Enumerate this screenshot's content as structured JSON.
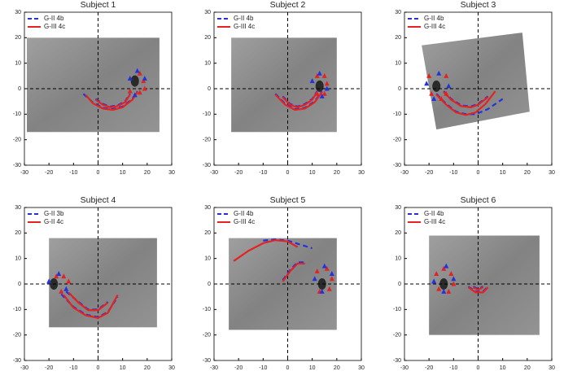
{
  "chart_data": [
    {
      "type": "line",
      "title": "Subject 1",
      "xlim": [
        -30,
        30
      ],
      "ylim": [
        -30,
        30
      ],
      "xticks": [
        -30,
        -20,
        -10,
        0,
        10,
        20,
        30
      ],
      "yticks": [
        -30,
        -20,
        -10,
        0,
        10,
        20,
        30
      ],
      "legend": "upper left",
      "series": [
        {
          "name": "G-II 4b",
          "color": "#2233dd",
          "style": "dashed",
          "x": [
            -6,
            -2,
            2,
            6,
            10,
            14,
            16,
            null,
            -1,
            2,
            5,
            8,
            11,
            13
          ],
          "values": [
            -2,
            -5.5,
            -7.5,
            -8,
            -7,
            -4,
            -1,
            null,
            -4,
            -6,
            -7,
            -6.5,
            -5,
            -2
          ]
        },
        {
          "name": "G-III 4c",
          "color": "#e32222",
          "style": "solid",
          "x": [
            -5,
            -2,
            2,
            6,
            10,
            14,
            16,
            null,
            -1,
            2,
            5,
            8,
            11,
            13
          ],
          "values": [
            -2.5,
            -5.8,
            -7.8,
            -8.3,
            -7.3,
            -4.3,
            -1.3,
            null,
            -4.3,
            -6.3,
            -7.3,
            -6.8,
            -5.3,
            -2.3
          ]
        }
      ],
      "markers": [
        {
          "color": "#e32222",
          "x": [
            17,
            18.5,
            19,
            17,
            13
          ],
          "y": [
            6,
            3,
            0,
            -1.5,
            -1
          ]
        },
        {
          "color": "#2233dd",
          "x": [
            13,
            16,
            19,
            15
          ],
          "y": [
            4,
            7,
            4,
            -2.5
          ]
        }
      ]
    },
    {
      "type": "line",
      "title": "Subject 2",
      "xlim": [
        -30,
        30
      ],
      "ylim": [
        -30,
        30
      ],
      "xticks": [
        -30,
        -20,
        -10,
        0,
        10,
        20,
        30
      ],
      "yticks": [
        -30,
        -20,
        -10,
        0,
        10,
        20,
        30
      ],
      "legend": "upper left",
      "series": [
        {
          "name": "G-II 4b",
          "color": "#2233dd",
          "style": "dashed",
          "x": [
            -5,
            -1,
            3,
            7,
            11,
            14,
            null,
            -2,
            1,
            4,
            7,
            10,
            12
          ],
          "values": [
            -2,
            -6,
            -8,
            -7.5,
            -5,
            -1,
            null,
            -3,
            -6,
            -7,
            -6,
            -4,
            -1
          ]
        },
        {
          "name": "G-III 4c",
          "color": "#e32222",
          "style": "solid",
          "x": [
            -5,
            -1,
            3,
            7,
            11,
            14,
            null,
            -2,
            1,
            4,
            7,
            10,
            12
          ],
          "values": [
            -2.3,
            -6.3,
            -8.3,
            -7.8,
            -5.3,
            -1.3,
            null,
            -3.3,
            -6.3,
            -7.3,
            -6.3,
            -4.3,
            -1.3
          ]
        }
      ],
      "markers": [
        {
          "color": "#e32222",
          "x": [
            12,
            15,
            16,
            15,
            12
          ],
          "y": [
            5,
            5,
            2,
            -2,
            -2
          ]
        },
        {
          "color": "#2233dd",
          "x": [
            10,
            13,
            16,
            14
          ],
          "y": [
            3,
            6,
            0,
            -3
          ]
        }
      ]
    },
    {
      "type": "line",
      "title": "Subject 3",
      "xlim": [
        -30,
        30
      ],
      "ylim": [
        -30,
        30
      ],
      "xticks": [
        -30,
        -20,
        -10,
        0,
        10,
        20,
        30
      ],
      "yticks": [
        -30,
        -20,
        -10,
        0,
        10,
        20,
        30
      ],
      "legend": "upper left",
      "series": [
        {
          "name": "G-II 4b",
          "color": "#2233dd",
          "style": "dashed",
          "x": [
            -17,
            -13,
            -9,
            -5,
            -1,
            4,
            10,
            null,
            -14,
            -11,
            -7,
            -3,
            0,
            4
          ],
          "values": [
            -2,
            -6,
            -9,
            -10,
            -10,
            -8,
            -4,
            null,
            -1,
            -4,
            -6.5,
            -7,
            -6,
            -3
          ]
        },
        {
          "name": "G-III 4c",
          "color": "#e32222",
          "style": "solid",
          "x": [
            -17,
            -13,
            -9,
            -5,
            -1,
            3,
            7,
            null,
            -14,
            -11,
            -7,
            -3,
            0,
            4
          ],
          "values": [
            -2.3,
            -6.3,
            -9.3,
            -10.3,
            -9.3,
            -6,
            -1,
            null,
            -1.3,
            -4.3,
            -6.8,
            -7.3,
            -6.3,
            -3.3
          ]
        }
      ],
      "markers": [
        {
          "color": "#e32222",
          "x": [
            -20,
            -19,
            -13,
            -13,
            -15
          ],
          "y": [
            5,
            -2,
            5,
            -2,
            -4
          ]
        },
        {
          "color": "#2233dd",
          "x": [
            -21,
            -16,
            -12,
            -18
          ],
          "y": [
            2,
            6,
            1,
            -4
          ]
        }
      ]
    },
    {
      "type": "line",
      "title": "Subject 4",
      "xlim": [
        -30,
        30
      ],
      "ylim": [
        -30,
        30
      ],
      "xticks": [
        -30,
        -20,
        -10,
        0,
        10,
        20,
        30
      ],
      "yticks": [
        -30,
        -20,
        -10,
        0,
        10,
        20,
        30
      ],
      "legend": "upper left",
      "series": [
        {
          "name": "G-II 3b",
          "color": "#2233dd",
          "style": "dashed",
          "x": [
            -15,
            -10,
            -5,
            0,
            4,
            8,
            null,
            -13,
            -8,
            -4,
            0,
            4
          ],
          "values": [
            -4,
            -9,
            -12,
            -13,
            -11,
            -5,
            null,
            -3,
            -7,
            -10,
            -10,
            -7
          ]
        },
        {
          "name": "G-II 4c",
          "color": "#e32222",
          "style": "solid",
          "x": [
            -14,
            -10,
            -5,
            0,
            4,
            8,
            null,
            -12,
            -8,
            -4,
            0,
            4
          ],
          "values": [
            -4.3,
            -9.3,
            -12.3,
            -13.3,
            -11.3,
            -4.3,
            null,
            -3.3,
            -7.3,
            -10.3,
            -10.3,
            -7.3
          ]
        }
      ],
      "markers": [
        {
          "color": "#e32222",
          "x": [
            -17,
            -14,
            -12,
            -15
          ],
          "y": [
            3,
            3,
            1,
            -3
          ]
        },
        {
          "color": "#2233dd",
          "x": [
            -20,
            -16,
            -13
          ],
          "y": [
            1,
            4,
            -2
          ]
        }
      ]
    },
    {
      "type": "line",
      "title": "Subject 5",
      "xlim": [
        -30,
        30
      ],
      "ylim": [
        -30,
        30
      ],
      "xticks": [
        -30,
        -20,
        -10,
        0,
        10,
        20,
        30
      ],
      "yticks": [
        -30,
        -20,
        -10,
        0,
        10,
        20,
        30
      ],
      "legend": "upper left",
      "series": [
        {
          "name": "G-II 4b",
          "color": "#2233dd",
          "style": "dashed",
          "x": [
            -10,
            -5,
            0,
            5,
            10,
            null,
            -2,
            1,
            4,
            7
          ],
          "values": [
            17,
            17.5,
            17,
            15.5,
            14,
            null,
            1.5,
            5.5,
            8.5,
            8.5
          ]
        },
        {
          "name": "G-III 4c",
          "color": "#e32222",
          "style": "solid",
          "x": [
            -22,
            -16,
            -10,
            -5,
            0,
            4,
            null,
            -2,
            1,
            4,
            7
          ],
          "values": [
            9,
            13,
            16,
            17.2,
            16.7,
            14.5,
            null,
            1,
            5,
            8,
            8
          ]
        }
      ],
      "markers": [
        {
          "color": "#e32222",
          "x": [
            12,
            16,
            18,
            17,
            13
          ],
          "y": [
            5,
            6,
            2,
            -2,
            -3
          ]
        },
        {
          "color": "#2233dd",
          "x": [
            11,
            15,
            18,
            14
          ],
          "y": [
            2,
            7,
            4,
            -3
          ]
        }
      ]
    },
    {
      "type": "line",
      "title": "Subject 6",
      "xlim": [
        -30,
        30
      ],
      "ylim": [
        -30,
        30
      ],
      "xticks": [
        -30,
        -20,
        -10,
        0,
        10,
        20,
        30
      ],
      "yticks": [
        -30,
        -20,
        -10,
        0,
        10,
        20,
        30
      ],
      "legend": "upper left",
      "series": [
        {
          "name": "G-II 4b",
          "color": "#2233dd",
          "style": "dashed",
          "x": [
            -4,
            -1,
            2,
            4,
            null,
            -2,
            0,
            2
          ],
          "values": [
            -1,
            -3,
            -3,
            -1,
            null,
            -1,
            -2,
            -1
          ]
        },
        {
          "name": "G-III 4c",
          "color": "#e32222",
          "style": "solid",
          "x": [
            -4,
            -1,
            2,
            4,
            null,
            -2,
            0,
            2
          ],
          "values": [
            -1.3,
            -3.3,
            -3.3,
            -1.3,
            null,
            -1.3,
            -2.3,
            -1.3
          ]
        }
      ],
      "markers": [
        {
          "color": "#e32222",
          "x": [
            -17,
            -14,
            -11,
            -10,
            -12,
            -16
          ],
          "y": [
            4,
            6,
            4,
            0,
            -3,
            -2
          ]
        },
        {
          "color": "#2233dd",
          "x": [
            -18,
            -13,
            -10,
            -14
          ],
          "y": [
            1,
            7,
            2,
            -3
          ]
        }
      ]
    }
  ]
}
